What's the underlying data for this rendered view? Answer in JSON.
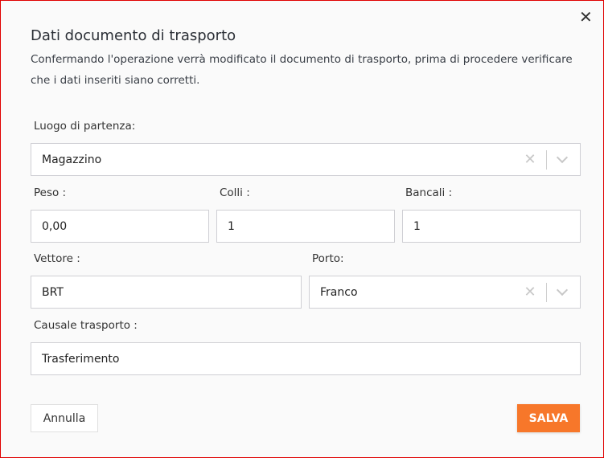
{
  "dialog": {
    "title": "Dati documento di trasporto",
    "description": "Confermando l'operazione verrà modificato il documento di trasporto, prima di procedere verificare che i dati inseriti siano corretti.",
    "close_icon": "close-icon"
  },
  "form": {
    "luogo": {
      "label": "Luogo di partenza:",
      "value": "Magazzino"
    },
    "peso": {
      "label": "Peso :",
      "value": "0,00"
    },
    "colli": {
      "label": "Colli :",
      "value": "1"
    },
    "bancali": {
      "label": "Bancali :",
      "value": "1"
    },
    "vettore": {
      "label": "Vettore :",
      "value": "BRT"
    },
    "porto": {
      "label": "Porto:",
      "value": "Franco"
    },
    "causale": {
      "label": "Causale trasporto :",
      "value": "Trasferimento"
    }
  },
  "buttons": {
    "cancel": "Annulla",
    "save": "SALVA"
  },
  "colors": {
    "accent": "#f7772a",
    "window_border": "#e00000"
  }
}
